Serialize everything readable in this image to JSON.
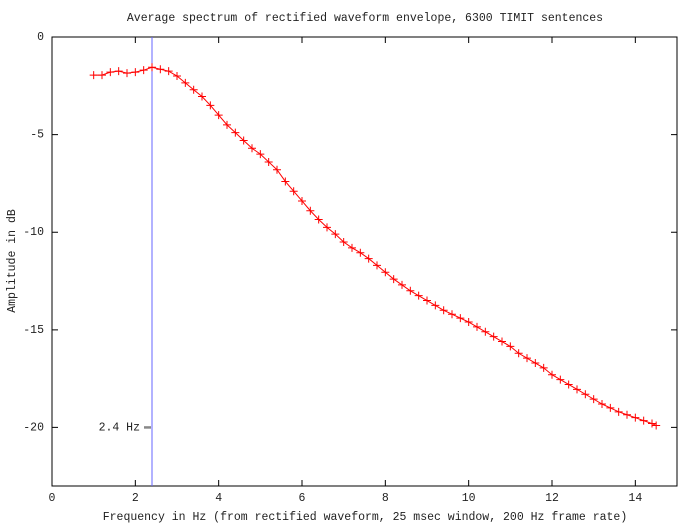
{
  "chart_data": {
    "type": "line",
    "title": "Average spectrum of rectified waveform envelope, 6300 TIMIT sentences",
    "x_label": "Frequency in Hz (from rectified waveform, 25 msec window, 200 Hz frame rate)",
    "y_label": "Amplitude in dB",
    "color": "#ff0000",
    "x": [
      1.0,
      1.2,
      1.4,
      1.6,
      1.8,
      2.0,
      2.2,
      2.4,
      2.6,
      2.8,
      3.0,
      3.2,
      3.4,
      3.6,
      3.8,
      4.0,
      4.2,
      4.4,
      4.6,
      4.8,
      5.0,
      5.2,
      5.4,
      5.6,
      5.8,
      6.0,
      6.2,
      6.4,
      6.6,
      6.8,
      7.0,
      7.2,
      7.4,
      7.6,
      7.8,
      8.0,
      8.2,
      8.4,
      8.6,
      8.8,
      9.0,
      9.2,
      9.4,
      9.6,
      9.8,
      10.0,
      10.2,
      10.4,
      10.6,
      10.8,
      11.0,
      11.2,
      11.4,
      11.6,
      11.8,
      12.0,
      12.2,
      12.4,
      12.6,
      12.8,
      13.0,
      13.2,
      13.4,
      13.6,
      13.8,
      14.0,
      14.2,
      14.4,
      14.5
    ],
    "values": [
      -1.95,
      -1.95,
      -1.8,
      -1.75,
      -1.85,
      -1.8,
      -1.7,
      -1.55,
      -1.65,
      -1.75,
      -2.0,
      -2.35,
      -2.7,
      -3.05,
      -3.5,
      -4.0,
      -4.5,
      -4.9,
      -5.3,
      -5.7,
      -6.0,
      -6.4,
      -6.8,
      -7.4,
      -7.9,
      -8.4,
      -8.9,
      -9.35,
      -9.75,
      -10.1,
      -10.5,
      -10.8,
      -11.05,
      -11.35,
      -11.7,
      -12.05,
      -12.4,
      -12.7,
      -13.0,
      -13.25,
      -13.5,
      -13.75,
      -14.0,
      -14.2,
      -14.4,
      -14.6,
      -14.85,
      -15.1,
      -15.35,
      -15.6,
      -15.85,
      -16.2,
      -16.45,
      -16.7,
      -16.95,
      -17.3,
      -17.55,
      -17.8,
      -18.05,
      -18.3,
      -18.55,
      -18.8,
      -19.0,
      -19.2,
      -19.35,
      -19.5,
      -19.65,
      -19.8,
      -19.9
    ],
    "marker_line": {
      "x": 2.4,
      "color": "#6666ff",
      "label": "2.4 Hz",
      "label_y": -20
    },
    "xlim": [
      0,
      15
    ],
    "xticks": [
      0,
      2,
      4,
      6,
      8,
      10,
      12,
      14
    ],
    "ylim": [
      -23,
      0
    ],
    "yticks": [
      0,
      -5,
      -10,
      -15,
      -20
    ]
  }
}
